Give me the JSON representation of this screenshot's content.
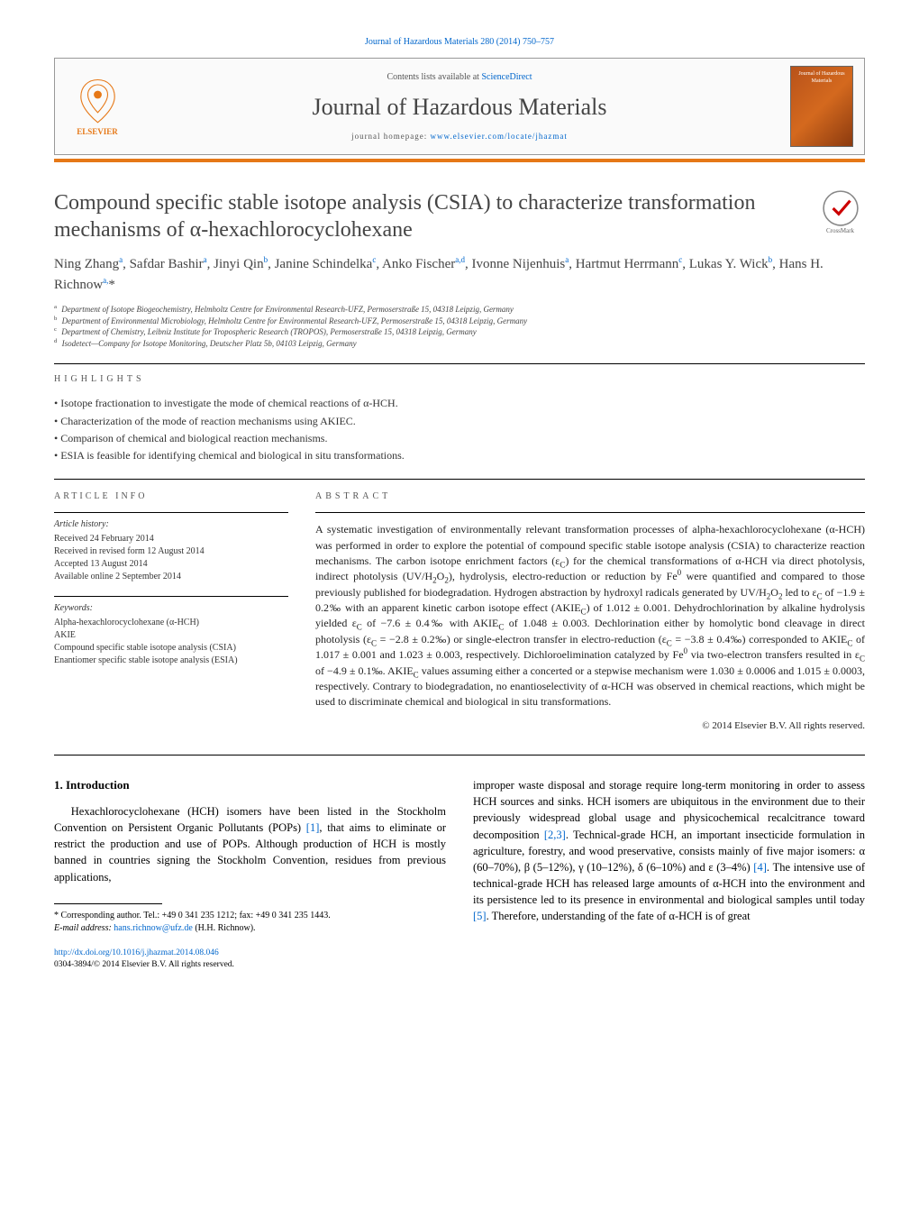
{
  "citation": "Journal of Hazardous Materials 280 (2014) 750–757",
  "header": {
    "contents_prefix": "Contents lists available at ",
    "contents_link": "ScienceDirect",
    "journal_name": "Journal of Hazardous Materials",
    "homepage_prefix": "journal homepage: ",
    "homepage_url": "www.elsevier.com/locate/jhazmat",
    "publisher": "ELSEVIER"
  },
  "title": "Compound specific stable isotope analysis (CSIA) to characterize transformation mechanisms of α-hexachlorocyclohexane",
  "crossmark_label": "CrossMark",
  "authors_html": "Ning Zhang<sup>a</sup>, Safdar Bashir<sup>a</sup>, Jinyi Qin<sup>b</sup>, Janine Schindelka<sup>c</sup>, Anko Fischer<sup>a,d</sup>, Ivonne Nijenhuis<sup>a</sup>, Hartmut Herrmann<sup>c</sup>, Lukas Y. Wick<sup>b</sup>, Hans H. Richnow<sup>a,</sup><span class='star'>*</span>",
  "affiliations": [
    {
      "sup": "a",
      "text": "Department of Isotope Biogeochemistry, Helmholtz Centre for Environmental Research-UFZ, Permoserstraße 15, 04318 Leipzig, Germany"
    },
    {
      "sup": "b",
      "text": "Department of Environmental Microbiology, Helmholtz Centre for Environmental Research-UFZ, Permoserstraße 15, 04318 Leipzig, Germany"
    },
    {
      "sup": "c",
      "text": "Department of Chemistry, Leibniz Institute for Tropospheric Research (TROPOS), Permoserstraße 15, 04318 Leipzig, Germany"
    },
    {
      "sup": "d",
      "text": "Isodetect—Company for Isotope Monitoring, Deutscher Platz 5b, 04103 Leipzig, Germany"
    }
  ],
  "highlights_label": "HIGHLIGHTS",
  "highlights": [
    "Isotope fractionation to investigate the mode of chemical reactions of α-HCH.",
    "Characterization of the mode of reaction mechanisms using AKIEC.",
    "Comparison of chemical and biological reaction mechanisms.",
    "ESIA is feasible for identifying chemical and biological in situ transformations."
  ],
  "article_info_label": "ARTICLE INFO",
  "history": {
    "hdr": "Article history:",
    "received": "Received 24 February 2014",
    "revised": "Received in revised form 12 August 2014",
    "accepted": "Accepted 13 August 2014",
    "online": "Available online 2 September 2014"
  },
  "keywords": {
    "hdr": "Keywords:",
    "items": [
      "Alpha-hexachlorocyclohexane (α-HCH)",
      "AKIE",
      "Compound specific stable isotope analysis (CSIA)",
      "Enantiomer specific stable isotope analysis (ESIA)"
    ]
  },
  "abstract_label": "ABSTRACT",
  "abstract_html": "A systematic investigation of environmentally relevant transformation processes of alpha-hexachlorocyclohexane (α-HCH) was performed in order to explore the potential of compound specific stable isotope analysis (CSIA) to characterize reaction mechanisms. The carbon isotope enrichment factors (ε<sub>C</sub>) for the chemical transformations of α-HCH via direct photolysis, indirect photolysis (UV/H<sub>2</sub>O<sub>2</sub>), hydrolysis, electro-reduction or reduction by Fe<sup>0</sup> were quantified and compared to those previously published for biodegradation. Hydrogen abstraction by hydroxyl radicals generated by UV/H<sub>2</sub>O<sub>2</sub> led to ε<sub>C</sub> of −1.9 ± 0.2‰ with an apparent kinetic carbon isotope effect (AKIE<sub>C</sub>) of 1.012 ± 0.001. Dehydrochlorination by alkaline hydrolysis yielded ε<sub>C</sub> of −7.6 ± 0.4‰ with AKIE<sub>C</sub> of 1.048 ± 0.003. Dechlorination either by homolytic bond cleavage in direct photolysis (ε<sub>C</sub> = −2.8 ± 0.2‰) or single-electron transfer in electro-reduction (ε<sub>C</sub> = −3.8 ± 0.4‰) corresponded to AKIE<sub>C</sub> of 1.017 ± 0.001 and 1.023 ± 0.003, respectively. Dichloroelimination catalyzed by Fe<sup>0</sup> via two-electron transfers resulted in ε<sub>C</sub> of −4.9 ± 0.1‰. AKIE<sub>C</sub> values assuming either a concerted or a stepwise mechanism were 1.030 ± 0.0006 and 1.015 ± 0.0003, respectively. Contrary to biodegradation, no enantioselectivity of α-HCH was observed in chemical reactions, which might be used to discriminate chemical and biological in situ transformations.",
  "copyright": "© 2014 Elsevier B.V. All rights reserved.",
  "intro_heading": "1. Introduction",
  "intro_left_html": "Hexachlorocyclohexane (HCH) isomers have been listed in the Stockholm Convention on Persistent Organic Pollutants (POPs) <span class='ref-link'>[1]</span>, that aims to eliminate or restrict the production and use of POPs. Although production of HCH is mostly banned in countries signing the Stockholm Convention, residues from previous applications,",
  "intro_right_html": "improper waste disposal and storage require long-term monitoring in order to assess HCH sources and sinks. HCH isomers are ubiquitous in the environment due to their previously widespread global usage and physicochemical recalcitrance toward decomposition <span class='ref-link'>[2,3]</span>. Technical-grade HCH, an important insecticide formulation in agriculture, forestry, and wood preservative, consists mainly of five major isomers: α (60–70%), β (5–12%), γ (10–12%), δ (6–10%) and ε (3–4%) <span class='ref-link'>[4]</span>. The intensive use of technical-grade HCH has released large amounts of α-HCH into the environment and its persistence led to its presence in environmental and biological samples until today <span class='ref-link'>[5]</span>. Therefore, understanding of the fate of α-HCH is of great",
  "corr": {
    "line1": "* Corresponding author. Tel.: +49 0 341 235 1212; fax: +49 0 341 235 1443.",
    "email_prefix": "E-mail address: ",
    "email": "hans.richnow@ufz.de",
    "name": " (H.H. Richnow)."
  },
  "doi": {
    "url": "http://dx.doi.org/10.1016/j.jhazmat.2014.08.046",
    "issn_line": "0304-3894/© 2014 Elsevier B.V. All rights reserved."
  },
  "colors": {
    "link": "#0066cc",
    "accent": "#e67817"
  }
}
